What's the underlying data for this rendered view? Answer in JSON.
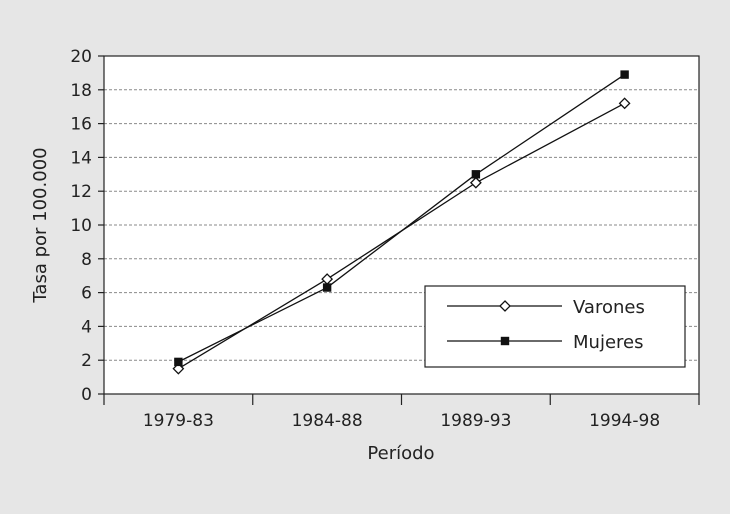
{
  "chart_data": {
    "type": "line",
    "title": "",
    "xlabel": "Período",
    "ylabel": "Tasa por 100.000",
    "categories": [
      "1979-83",
      "1984-88",
      "1989-93",
      "1994-98"
    ],
    "ylim": [
      0,
      20
    ],
    "yticks": [
      "0",
      "2",
      "4",
      "6",
      "8",
      "10",
      "12",
      "14",
      "16",
      "18",
      "20"
    ],
    "grid": "horizontal dashed",
    "legend_position": "bottom-right",
    "series": [
      {
        "name": "Varones",
        "marker": "open-diamond",
        "values": [
          1.5,
          6.8,
          12.5,
          17.2
        ]
      },
      {
        "name": "Mujeres",
        "marker": "filled-square",
        "values": [
          1.9,
          6.3,
          13.0,
          18.9
        ]
      }
    ]
  }
}
